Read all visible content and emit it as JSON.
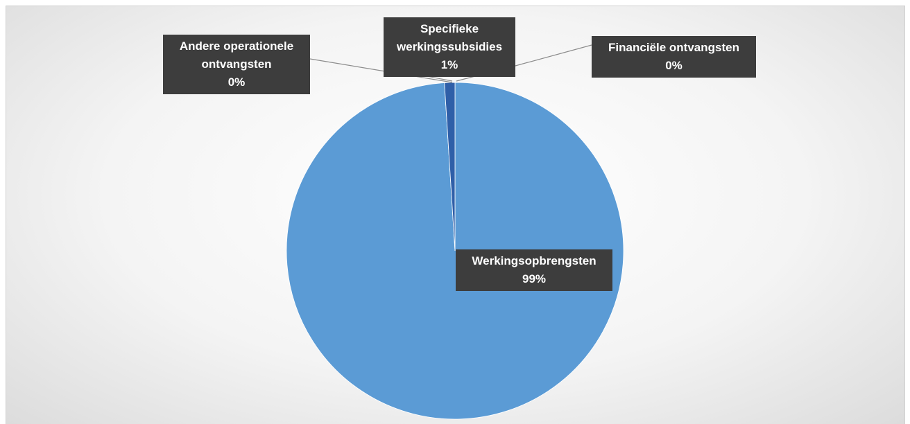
{
  "chart_data": {
    "type": "pie",
    "categories": [
      "Werkingsopbrengsten",
      "Specifieke werkingssubsidies",
      "Andere operationele ontvangsten",
      "Financiële ontvangsten"
    ],
    "values": [
      99,
      1,
      0,
      0
    ],
    "value_labels": [
      "99%",
      "1%",
      "0%",
      "0%"
    ],
    "colors": [
      "#5b9bd5",
      "#2f5fa8",
      "#a5a5a5",
      "#ffc000"
    ]
  }
}
